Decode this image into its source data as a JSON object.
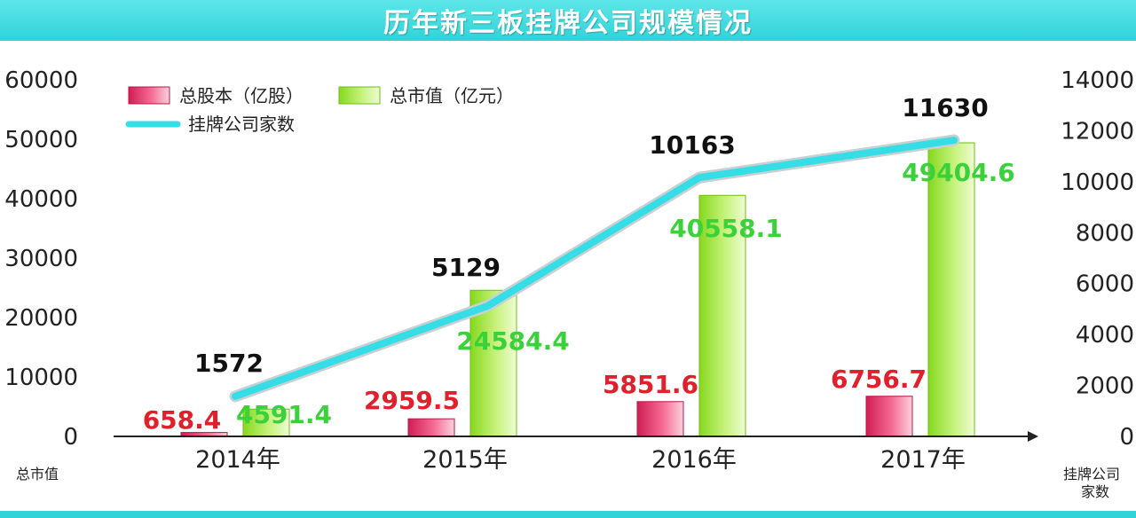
{
  "header": {
    "title": "历年新三板挂牌公司规模情况"
  },
  "colors": {
    "header_band": "#2fd3d8",
    "capital_bar": "#e8336b",
    "market_bar": "#a6e83a",
    "company_line": "#35dde6",
    "capital_label": "#e0202a",
    "market_label": "#3ad13a",
    "company_label": "#111111"
  },
  "chart_data": {
    "type": "bar",
    "categories": [
      "2014年",
      "2015年",
      "2016年",
      "2017年"
    ],
    "series": [
      {
        "name": "总股本（亿股）",
        "kind": "bar",
        "axis": "left",
        "values": [
          658.4,
          2959.5,
          5851.6,
          6756.7
        ]
      },
      {
        "name": "总市值（亿元）",
        "kind": "bar",
        "axis": "left",
        "values": [
          4591.4,
          24584.4,
          40558.1,
          49404.6
        ]
      },
      {
        "name": "挂牌公司家数",
        "kind": "line",
        "axis": "right",
        "values": [
          1572,
          5129,
          10163,
          11630
        ]
      }
    ],
    "value_labels": {
      "capital": [
        "658.4",
        "2959.5",
        "5851.6",
        "6756.7"
      ],
      "market": [
        "4591.4",
        "24584.4",
        "40558.1",
        "49404.6"
      ],
      "companies": [
        "1572",
        "5129",
        "10163",
        "11630"
      ]
    },
    "y_left": {
      "label": "总市值",
      "range": [
        0,
        60000
      ],
      "ticks": [
        "0",
        "10000",
        "20000",
        "30000",
        "40000",
        "50000",
        "60000"
      ]
    },
    "y_right": {
      "label_lines": [
        "挂牌公司",
        "家数"
      ],
      "range": [
        0,
        14000
      ],
      "ticks": [
        "0",
        "2000",
        "4000",
        "6000",
        "8000",
        "10000",
        "12000",
        "14000"
      ]
    },
    "legend": {
      "placement": "top-left",
      "items": [
        "总股本（亿股）",
        "总市值（亿元）",
        "挂牌公司家数"
      ]
    },
    "grid": false
  }
}
